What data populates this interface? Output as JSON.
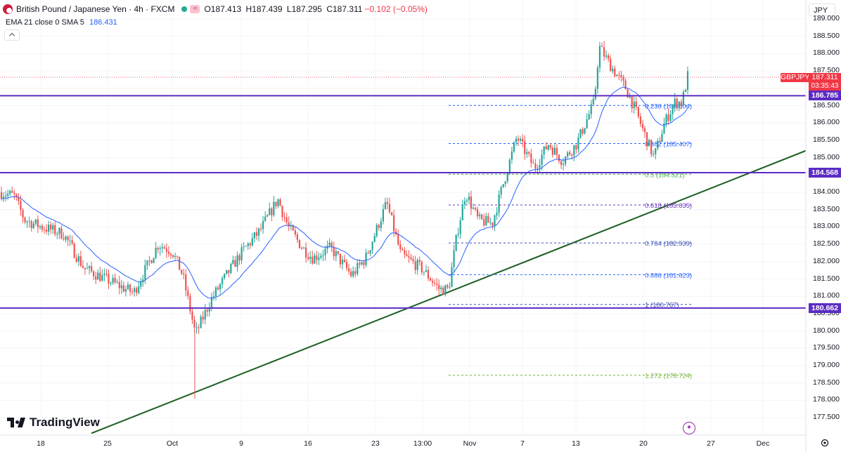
{
  "header": {
    "symbol_title": "British Pound / Japanese Yen · 4h · FXCM",
    "open": "O187.413",
    "high": "H187.439",
    "low": "L187.295",
    "close": "C187.311",
    "change": "−0.102 (−0.05%)",
    "wave_icon": "≈"
  },
  "indicator": {
    "label": "EMA 21 close 0 SMA 5",
    "value": "186.431"
  },
  "currency_selector": "JPY",
  "price_axis": {
    "ticks": [
      "189.000",
      "188.500",
      "188.000",
      "187.500",
      "187.000",
      "186.500",
      "186.000",
      "185.500",
      "185.000",
      "184.500",
      "184.000",
      "183.500",
      "183.000",
      "182.500",
      "182.000",
      "181.500",
      "181.000",
      "180.500",
      "180.000",
      "179.500",
      "179.000",
      "178.500",
      "178.000",
      "177.500"
    ]
  },
  "time_axis": {
    "ticks": [
      "18",
      "25",
      "Oct",
      "9",
      "16",
      "23",
      "13:00",
      "Nov",
      "7",
      "13",
      "20",
      "27",
      "Dec"
    ]
  },
  "price_tag": {
    "symbol": "GBPJPY",
    "price": "187.311",
    "countdown": "03:35:43",
    "color": "#f23645"
  },
  "horizontal_levels": [
    {
      "label": "186.785",
      "price": 186.785
    },
    {
      "label": "184.568",
      "price": 184.568
    },
    {
      "label": "180.662",
      "price": 180.662
    }
  ],
  "fib_levels": [
    {
      "label": "0.236 (186.504)",
      "price": 186.504,
      "color": "#2962ff"
    },
    {
      "label": "0.382 (185.407)",
      "price": 185.407,
      "color": "#2962ff"
    },
    {
      "label": "0.5 (184.521)",
      "price": 184.521,
      "color": "#4caf50"
    },
    {
      "label": "0.618 (183.635)",
      "price": 183.635,
      "color": "#673ab7"
    },
    {
      "label": "0.764 (182.539)",
      "price": 182.539,
      "color": "#3f51b5"
    },
    {
      "label": "0.886 (181.623)",
      "price": 181.623,
      "color": "#2962ff"
    },
    {
      "label": "1 (180.767)",
      "price": 180.767,
      "color": "#3f51b5"
    },
    {
      "label": "1.272 (178.724)",
      "price": 178.724,
      "color": "#7cb342"
    }
  ],
  "trendline": {
    "price_start": 177.05,
    "price_end": 185.2,
    "color": "#1b5e20"
  },
  "brand": "TradingView",
  "colors": {
    "up": "#26a69a",
    "down": "#ef5350",
    "level": "#5b2bc4",
    "ema": "#2962ff"
  },
  "icons": [
    "flag-icon",
    "status-dot-icon",
    "wave-icon",
    "collapse-icon",
    "tradingview-logo-icon",
    "spark-icon",
    "settings-icon"
  ]
}
